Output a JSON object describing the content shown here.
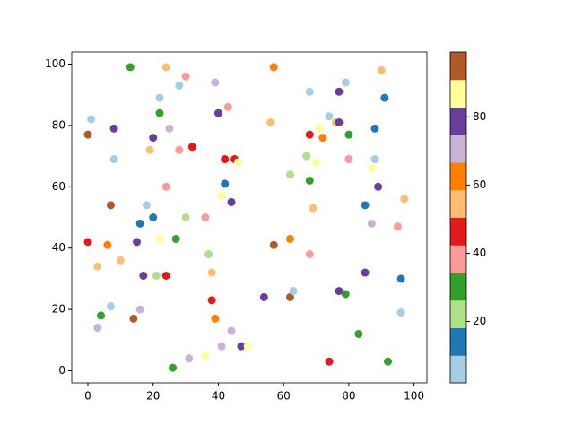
{
  "chart_data": {
    "type": "scatter",
    "x": [
      0,
      1,
      0,
      3,
      3,
      4,
      6,
      7,
      7,
      8,
      8,
      10,
      13,
      14,
      15,
      16,
      16,
      17,
      18,
      19,
      20,
      20,
      21,
      22,
      22,
      22,
      24,
      24,
      24,
      25,
      26,
      27,
      28,
      28,
      30,
      30,
      31,
      32,
      36,
      36,
      37,
      38,
      38,
      39,
      39,
      40,
      41,
      41,
      42,
      42,
      43,
      44,
      44,
      45,
      46,
      47,
      49,
      54,
      56,
      57,
      57,
      62,
      62,
      62,
      63,
      67,
      68,
      68,
      68,
      68,
      69,
      70,
      71,
      72,
      74,
      74,
      76,
      77,
      77,
      77,
      79,
      79,
      80,
      80,
      83,
      85,
      85,
      87,
      87,
      88,
      88,
      89,
      90,
      91,
      92,
      95,
      96,
      96,
      97
    ],
    "y": [
      77,
      82,
      42,
      34,
      14,
      18,
      41,
      54,
      21,
      79,
      69,
      36,
      99,
      17,
      42,
      48,
      20,
      31,
      54,
      72,
      76,
      50,
      31,
      89,
      84,
      43,
      99,
      60,
      31,
      79,
      1,
      43,
      93,
      72,
      96,
      50,
      4,
      73,
      50,
      5,
      38,
      32,
      23,
      94,
      17,
      84,
      57,
      8,
      61,
      69,
      86,
      55,
      13,
      69,
      68,
      8,
      8,
      24,
      81,
      99,
      41,
      64,
      43,
      24,
      26,
      70,
      91,
      77,
      62,
      38,
      53,
      68,
      79,
      76,
      83,
      3,
      81,
      91,
      81,
      26,
      94,
      25,
      77,
      69,
      12,
      54,
      32,
      66,
      48,
      79,
      69,
      60,
      98,
      89,
      3,
      47,
      30,
      19,
      56
    ],
    "c": [
      95,
      6,
      46,
      55,
      71,
      30,
      63,
      95,
      6,
      79,
      6,
      55,
      30,
      95,
      79,
      14,
      71,
      79,
      6,
      55,
      79,
      14,
      22,
      6,
      30,
      87,
      55,
      38,
      46,
      71,
      30,
      30,
      6,
      38,
      38,
      22,
      71,
      46,
      38,
      87,
      22,
      55,
      46,
      71,
      63,
      79,
      87,
      71,
      14,
      46,
      38,
      79,
      71,
      46,
      87,
      79,
      87,
      79,
      55,
      63,
      95,
      22,
      63,
      95,
      6,
      22,
      6,
      46,
      30,
      38,
      55,
      87,
      87,
      63,
      6,
      46,
      55,
      79,
      79,
      79,
      6,
      30,
      30,
      38,
      30,
      14,
      79,
      87,
      71,
      14,
      6,
      79,
      55,
      14,
      30,
      38,
      14,
      6,
      55
    ],
    "colormap": [
      "#a6cee3",
      "#1f78b4",
      "#b2df8a",
      "#33a02c",
      "#fb9a99",
      "#e31a1c",
      "#fdbf6f",
      "#ff7f00",
      "#cab2d6",
      "#6a3d9a",
      "#ffff99",
      "#b15928"
    ],
    "clim": [
      2,
      99
    ],
    "cticks": [
      20,
      40,
      60,
      80
    ],
    "xlim": [
      -4.95,
      103.95
    ],
    "ylim": [
      -3.95,
      103.95
    ],
    "xticks": [
      0,
      20,
      40,
      60,
      80,
      100
    ],
    "yticks": [
      0,
      20,
      40,
      60,
      80,
      100
    ]
  }
}
